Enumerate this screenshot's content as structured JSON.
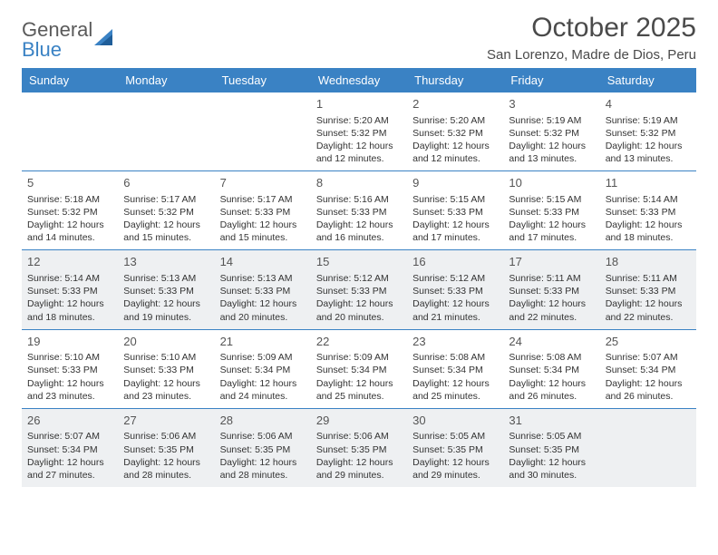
{
  "brand": {
    "word1": "General",
    "word2": "Blue"
  },
  "title": "October 2025",
  "location": "San Lorenzo, Madre de Dios, Peru",
  "colors": {
    "header_bg": "#3a82c4",
    "rule": "#3a82c4",
    "shade": "#eef0f2",
    "text": "#333333",
    "muted": "#555555"
  },
  "weekdays": [
    "Sunday",
    "Monday",
    "Tuesday",
    "Wednesday",
    "Thursday",
    "Friday",
    "Saturday"
  ],
  "weeks": [
    {
      "shaded": false,
      "days": [
        null,
        null,
        null,
        {
          "n": "1",
          "sr": "5:20 AM",
          "ss": "5:32 PM",
          "dl": "12 hours and 12 minutes."
        },
        {
          "n": "2",
          "sr": "5:20 AM",
          "ss": "5:32 PM",
          "dl": "12 hours and 12 minutes."
        },
        {
          "n": "3",
          "sr": "5:19 AM",
          "ss": "5:32 PM",
          "dl": "12 hours and 13 minutes."
        },
        {
          "n": "4",
          "sr": "5:19 AM",
          "ss": "5:32 PM",
          "dl": "12 hours and 13 minutes."
        }
      ]
    },
    {
      "shaded": false,
      "days": [
        {
          "n": "5",
          "sr": "5:18 AM",
          "ss": "5:32 PM",
          "dl": "12 hours and 14 minutes."
        },
        {
          "n": "6",
          "sr": "5:17 AM",
          "ss": "5:32 PM",
          "dl": "12 hours and 15 minutes."
        },
        {
          "n": "7",
          "sr": "5:17 AM",
          "ss": "5:33 PM",
          "dl": "12 hours and 15 minutes."
        },
        {
          "n": "8",
          "sr": "5:16 AM",
          "ss": "5:33 PM",
          "dl": "12 hours and 16 minutes."
        },
        {
          "n": "9",
          "sr": "5:15 AM",
          "ss": "5:33 PM",
          "dl": "12 hours and 17 minutes."
        },
        {
          "n": "10",
          "sr": "5:15 AM",
          "ss": "5:33 PM",
          "dl": "12 hours and 17 minutes."
        },
        {
          "n": "11",
          "sr": "5:14 AM",
          "ss": "5:33 PM",
          "dl": "12 hours and 18 minutes."
        }
      ]
    },
    {
      "shaded": true,
      "days": [
        {
          "n": "12",
          "sr": "5:14 AM",
          "ss": "5:33 PM",
          "dl": "12 hours and 18 minutes."
        },
        {
          "n": "13",
          "sr": "5:13 AM",
          "ss": "5:33 PM",
          "dl": "12 hours and 19 minutes."
        },
        {
          "n": "14",
          "sr": "5:13 AM",
          "ss": "5:33 PM",
          "dl": "12 hours and 20 minutes."
        },
        {
          "n": "15",
          "sr": "5:12 AM",
          "ss": "5:33 PM",
          "dl": "12 hours and 20 minutes."
        },
        {
          "n": "16",
          "sr": "5:12 AM",
          "ss": "5:33 PM",
          "dl": "12 hours and 21 minutes."
        },
        {
          "n": "17",
          "sr": "5:11 AM",
          "ss": "5:33 PM",
          "dl": "12 hours and 22 minutes."
        },
        {
          "n": "18",
          "sr": "5:11 AM",
          "ss": "5:33 PM",
          "dl": "12 hours and 22 minutes."
        }
      ]
    },
    {
      "shaded": false,
      "days": [
        {
          "n": "19",
          "sr": "5:10 AM",
          "ss": "5:33 PM",
          "dl": "12 hours and 23 minutes."
        },
        {
          "n": "20",
          "sr": "5:10 AM",
          "ss": "5:33 PM",
          "dl": "12 hours and 23 minutes."
        },
        {
          "n": "21",
          "sr": "5:09 AM",
          "ss": "5:34 PM",
          "dl": "12 hours and 24 minutes."
        },
        {
          "n": "22",
          "sr": "5:09 AM",
          "ss": "5:34 PM",
          "dl": "12 hours and 25 minutes."
        },
        {
          "n": "23",
          "sr": "5:08 AM",
          "ss": "5:34 PM",
          "dl": "12 hours and 25 minutes."
        },
        {
          "n": "24",
          "sr": "5:08 AM",
          "ss": "5:34 PM",
          "dl": "12 hours and 26 minutes."
        },
        {
          "n": "25",
          "sr": "5:07 AM",
          "ss": "5:34 PM",
          "dl": "12 hours and 26 minutes."
        }
      ]
    },
    {
      "shaded": true,
      "days": [
        {
          "n": "26",
          "sr": "5:07 AM",
          "ss": "5:34 PM",
          "dl": "12 hours and 27 minutes."
        },
        {
          "n": "27",
          "sr": "5:06 AM",
          "ss": "5:35 PM",
          "dl": "12 hours and 28 minutes."
        },
        {
          "n": "28",
          "sr": "5:06 AM",
          "ss": "5:35 PM",
          "dl": "12 hours and 28 minutes."
        },
        {
          "n": "29",
          "sr": "5:06 AM",
          "ss": "5:35 PM",
          "dl": "12 hours and 29 minutes."
        },
        {
          "n": "30",
          "sr": "5:05 AM",
          "ss": "5:35 PM",
          "dl": "12 hours and 29 minutes."
        },
        {
          "n": "31",
          "sr": "5:05 AM",
          "ss": "5:35 PM",
          "dl": "12 hours and 30 minutes."
        },
        null
      ]
    }
  ],
  "labels": {
    "sunrise": "Sunrise:",
    "sunset": "Sunset:",
    "daylight": "Daylight:"
  }
}
